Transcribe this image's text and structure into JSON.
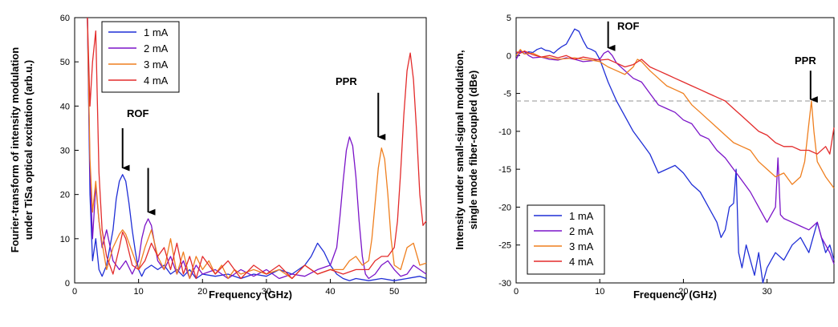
{
  "chart_data": [
    {
      "type": "line",
      "xlabel": "Frequency (GHz)",
      "ylabel": [
        "Fourier-transform of intensity modulation",
        "under TiSa optical excitation (arb.u.)"
      ],
      "xlim": [
        0,
        55
      ],
      "ylim": [
        0,
        60
      ],
      "xticks": [
        "0",
        "10",
        "20",
        "30",
        "40",
        "50"
      ],
      "yticks": [
        "0",
        "10",
        "20",
        "30",
        "40",
        "50",
        "60"
      ],
      "legend": "top-left",
      "annotations": [
        {
          "text": "ROF",
          "x": 7.5,
          "y": 36
        },
        {
          "text": "PPR",
          "x": 46.5,
          "y": 41
        }
      ],
      "arrows": [
        {
          "x": 7.5,
          "y_from": 35,
          "y_to": 26
        },
        {
          "x": 11.5,
          "y_from": 26,
          "y_to": 16
        },
        {
          "x": 47.5,
          "y_from": 43,
          "y_to": 33
        }
      ],
      "series": [
        {
          "name": "1 mA",
          "color": "#1f2ed6",
          "x": [
            2,
            2.4,
            2.8,
            3.3,
            3.8,
            4.3,
            5,
            5.5,
            6,
            6.5,
            7,
            7.5,
            8,
            8.5,
            9,
            9.5,
            10,
            10.5,
            11,
            12,
            13,
            14,
            15,
            16,
            17,
            18,
            19,
            20,
            22,
            24,
            26,
            28,
            30,
            32,
            34,
            36,
            37,
            38,
            39,
            40,
            41,
            42,
            43,
            44,
            46,
            48,
            50,
            52,
            54,
            55
          ],
          "y": [
            60,
            20,
            5,
            10,
            3,
            1.5,
            4,
            8,
            12,
            19,
            23,
            24.5,
            23,
            18,
            12,
            7,
            3,
            1.5,
            3,
            4,
            3,
            4,
            2,
            3,
            1.5,
            3,
            1,
            2,
            1.5,
            2,
            1,
            2,
            1.5,
            3,
            2,
            4,
            6,
            9,
            7,
            4,
            2,
            1,
            0.5,
            1,
            0.5,
            1,
            0.5,
            1,
            1.5,
            1
          ]
        },
        {
          "name": "2 mA",
          "color": "#7b14c8",
          "x": [
            2,
            2.4,
            2.8,
            3.3,
            3.8,
            4.3,
            5,
            6,
            7,
            8,
            9,
            10,
            10.5,
            11,
            11.5,
            12,
            12.5,
            13,
            14,
            15,
            16,
            17,
            18,
            19,
            20,
            22,
            24,
            26,
            28,
            30,
            32,
            34,
            36,
            38,
            40,
            41,
            41.5,
            42,
            42.5,
            43,
            43.5,
            44,
            44.5,
            45,
            45.5,
            46,
            47,
            48,
            49,
            50,
            51,
            52,
            53,
            54,
            55
          ],
          "y": [
            60,
            25,
            10,
            22,
            14,
            8,
            12,
            5,
            3,
            5,
            2,
            5,
            10,
            13,
            14.5,
            13,
            9,
            5,
            3,
            6,
            2,
            5,
            1,
            4,
            2,
            3,
            1,
            3,
            1.5,
            3,
            1,
            2,
            1.5,
            3,
            4,
            8,
            15,
            23,
            30,
            33,
            31,
            24,
            14,
            6,
            2,
            1,
            2,
            4,
            5,
            3,
            1.5,
            2,
            4,
            3,
            2
          ]
        },
        {
          "name": "3 mA",
          "color": "#ef7f1f",
          "x": [
            2,
            2.4,
            2.8,
            3.3,
            3.8,
            4.3,
            5,
            6,
            7,
            7.5,
            8,
            9,
            10,
            11,
            12,
            13,
            14,
            15,
            16,
            17,
            18,
            19,
            20,
            21,
            22,
            23,
            24,
            25,
            26,
            28,
            30,
            32,
            34,
            36,
            38,
            40,
            42,
            43,
            44,
            45,
            46,
            46.5,
            47,
            47.5,
            48,
            48.5,
            49,
            49.5,
            50,
            51,
            52,
            53,
            54,
            55
          ],
          "y": [
            60,
            28,
            16,
            23,
            14,
            9,
            3,
            8,
            11,
            12,
            11,
            7,
            3,
            8,
            12,
            6,
            3,
            10,
            2,
            7,
            1,
            6,
            3,
            5,
            2,
            4,
            1,
            3,
            2,
            3,
            2,
            3,
            1,
            4,
            2,
            3,
            3,
            5,
            6,
            4,
            5,
            10,
            18,
            26,
            30.5,
            28,
            20,
            10,
            4,
            3,
            8,
            9,
            4,
            4.5
          ]
        },
        {
          "name": "4 mA",
          "color": "#e32b2b",
          "x": [
            2,
            2.4,
            2.8,
            3.3,
            3.8,
            4.3,
            5,
            6,
            7,
            7.5,
            8,
            9,
            10,
            11,
            12,
            13,
            14,
            15,
            16,
            17,
            18,
            19,
            20,
            22,
            24,
            26,
            28,
            30,
            32,
            34,
            36,
            38,
            40,
            42,
            44,
            46,
            47,
            48,
            49,
            50,
            50.5,
            51,
            51.5,
            52,
            52.5,
            53,
            53.5,
            54,
            54.5,
            55
          ],
          "y": [
            60,
            40,
            50,
            57,
            25,
            12,
            6,
            2,
            8,
            11.5,
            10,
            4,
            3,
            5,
            9,
            6,
            8,
            3,
            9,
            2,
            6,
            1,
            6,
            2,
            5,
            1,
            4,
            2,
            4,
            1,
            4,
            2,
            3,
            2,
            3,
            3,
            5,
            6,
            6,
            8,
            14,
            25,
            38,
            48,
            52,
            46,
            34,
            20,
            13,
            14
          ]
        }
      ]
    },
    {
      "type": "line",
      "xlabel": "Frequency (GHz)",
      "ylabel": [
        "Intensity under small-signal modulation,",
        "single mode fiber-coupled (dBe)"
      ],
      "xlim": [
        0,
        38
      ],
      "ylim": [
        -30,
        5
      ],
      "xticks": [
        "0",
        "10",
        "20",
        "30"
      ],
      "yticks": [
        "5",
        "0",
        "-5",
        "-10",
        "-15",
        "-20",
        "-25",
        "-30"
      ],
      "legend": "bottom-left",
      "reference_line": {
        "y": -6,
        "style": "dashed",
        "color": "#aaaaaa"
      },
      "annotations": [
        {
          "text": "ROF",
          "x": 12.5,
          "y": 4
        },
        {
          "text": "PPR",
          "x": 35,
          "y": 0
        }
      ],
      "arrows": [
        {
          "x": 11,
          "y_from": 4.5,
          "y_to": 1
        },
        {
          "x": 35.2,
          "y_from": -2,
          "y_to": -5.8
        }
      ],
      "series": [
        {
          "name": "1 mA",
          "color": "#1f2ed6",
          "x": [
            0,
            0.5,
            1,
            1.5,
            2,
            2.5,
            3,
            3.5,
            4,
            4.5,
            5,
            5.5,
            6,
            6.5,
            7,
            7.5,
            8,
            8.5,
            9,
            9.5,
            10,
            10.5,
            11,
            12,
            13,
            14,
            15,
            16,
            17,
            18,
            19,
            20,
            21,
            22,
            23,
            24,
            24.5,
            25,
            25.5,
            26,
            26.3,
            26.6,
            27,
            27.5,
            28,
            28.5,
            29,
            29.5,
            30,
            30.5,
            31,
            32,
            33,
            34,
            35,
            35.5,
            36,
            36.5,
            37,
            37.5,
            38
          ],
          "y": [
            0.3,
            0.6,
            0.2,
            0.5,
            0.4,
            0.8,
            1,
            0.7,
            0.6,
            0.3,
            0.8,
            1.2,
            1.5,
            2.5,
            3.5,
            3.2,
            2,
            1,
            0.8,
            0.5,
            -0.5,
            -2,
            -3.5,
            -6,
            -8,
            -10,
            -11.5,
            -13,
            -15.5,
            -15,
            -14.5,
            -15.5,
            -17,
            -18,
            -20,
            -22,
            -24,
            -23,
            -20,
            -19.5,
            -15,
            -26,
            -28,
            -25,
            -27,
            -29,
            -26,
            -30,
            -28,
            -27,
            -26,
            -27,
            -25,
            -24,
            -26,
            -24,
            -22,
            -24,
            -26,
            -25,
            -27
          ]
        },
        {
          "name": "2 mA",
          "color": "#7b14c8",
          "x": [
            0,
            0.5,
            1,
            1.5,
            2,
            3,
            4,
            5,
            6,
            7,
            8,
            9,
            10,
            10.5,
            11,
            11.5,
            12,
            13,
            14,
            15,
            16,
            17,
            18,
            19,
            20,
            21,
            22,
            23,
            24,
            25,
            26,
            27,
            28,
            28.5,
            29,
            29.5,
            30,
            30.5,
            31,
            31.3,
            31.6,
            32,
            33,
            34,
            35,
            36,
            36.5,
            37,
            37.5,
            38
          ],
          "y": [
            -0.5,
            0.5,
            0.5,
            0,
            -0.3,
            -0.2,
            -0.5,
            -0.6,
            -0.3,
            -0.5,
            -0.8,
            -0.7,
            -0.5,
            0.3,
            0.6,
            0,
            -1,
            -2,
            -3,
            -3.5,
            -5,
            -6.5,
            -7,
            -7.5,
            -8.5,
            -9,
            -10.5,
            -11,
            -12.5,
            -13.5,
            -15,
            -16.5,
            -18,
            -19,
            -20,
            -21,
            -22,
            -21,
            -20,
            -13.5,
            -21,
            -21.5,
            -22,
            -22.5,
            -23,
            -22,
            -24,
            -25,
            -26,
            -27.5
          ]
        },
        {
          "name": "3 mA",
          "color": "#ef7f1f",
          "x": [
            0,
            0.5,
            1,
            2,
            3,
            4,
            5,
            6,
            7,
            8,
            9,
            10,
            11,
            12,
            13,
            14,
            14.5,
            15,
            16,
            17,
            18,
            19,
            20,
            21,
            22,
            23,
            24,
            25,
            26,
            27,
            28,
            29,
            30,
            31,
            32,
            33,
            34,
            34.5,
            35,
            35.3,
            35.6,
            36,
            37,
            38
          ],
          "y": [
            0,
            0.8,
            0.2,
            0.3,
            -0.2,
            -0.3,
            -0.5,
            -0.4,
            -0.3,
            -0.5,
            -0.6,
            -0.8,
            -1.5,
            -2,
            -2.5,
            -1.5,
            -0.5,
            -0.8,
            -2,
            -3,
            -4,
            -4.5,
            -5,
            -6.5,
            -7.5,
            -8.5,
            -9.5,
            -10.5,
            -11.5,
            -12,
            -12.5,
            -14,
            -15,
            -16,
            -15.5,
            -17,
            -16,
            -14,
            -9,
            -6,
            -10,
            -14,
            -16,
            -17.5
          ]
        },
        {
          "name": "4 mA",
          "color": "#e32b2b",
          "x": [
            0,
            0.5,
            1,
            2,
            3,
            4,
            5,
            6,
            7,
            8,
            9,
            10,
            11,
            12,
            13,
            14,
            15,
            16,
            17,
            18,
            19,
            20,
            21,
            22,
            23,
            24,
            25,
            26,
            27,
            28,
            29,
            30,
            31,
            32,
            33,
            34,
            35,
            36,
            37,
            37.5,
            38
          ],
          "y": [
            0.5,
            0.3,
            0.6,
            0.1,
            -0.2,
            0,
            -0.3,
            0,
            -0.5,
            -0.2,
            -0.4,
            -0.6,
            -0.5,
            -1,
            -1.5,
            -1.2,
            -0.5,
            -1.5,
            -2,
            -2.5,
            -3,
            -3.5,
            -4,
            -4.5,
            -5,
            -5.5,
            -6,
            -7,
            -8,
            -9,
            -10,
            -10.5,
            -11.5,
            -12,
            -12,
            -12.5,
            -12.5,
            -13,
            -12,
            -13,
            -9.5
          ]
        }
      ]
    }
  ]
}
